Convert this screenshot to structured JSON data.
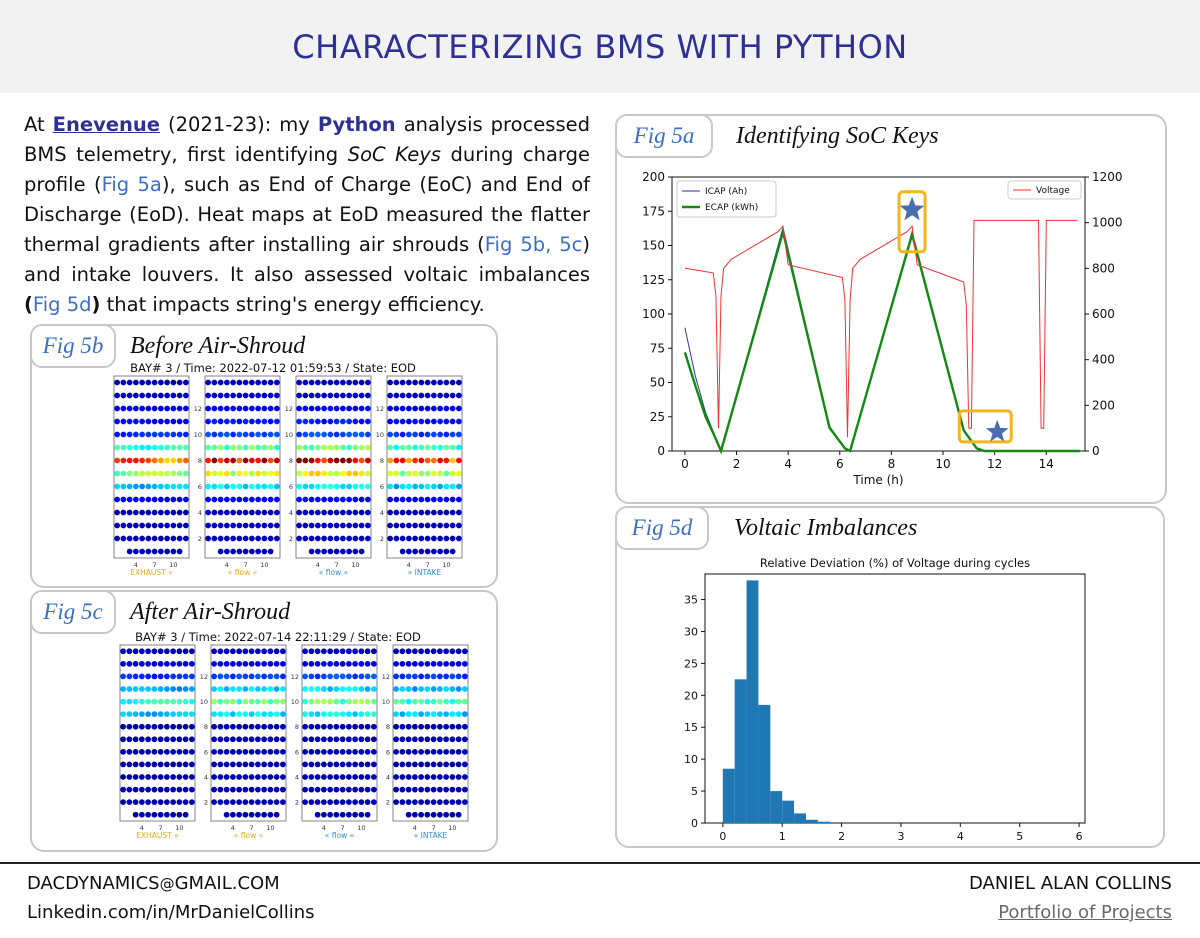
{
  "header": {
    "title": "CHARACTERIZING BMS WITH PYTHON"
  },
  "intro": {
    "p1": "At ",
    "company": "Enevenue",
    "p2": " (2021-23): my ",
    "python": "Python",
    "p3": " analysis processed BMS telemetry, first identifying ",
    "soc": "SoC Keys",
    "p4": " during charge profile (",
    "fig5a": "Fig 5a",
    "p5": "), such as End of Charge (EoC) and End of Discharge (EoD). Heat maps at EoD measured the flatter thermal gradients after installing air shrouds (",
    "fig5bc": "Fig 5b, 5c",
    "p6": ") and intake louvers. It also assessed voltaic imbalances ",
    "open": "(",
    "fig5d": "Fig 5d",
    "close": ")",
    "p7": " that impacts string's energy efficiency."
  },
  "fig5b": {
    "tab": "Fig 5b",
    "title": "Before Air-Shroud",
    "heatmap_title": "BAY# 3 / Time: 2022-07-12 01:59:53 / State: EOD",
    "col_ticks": [
      "4",
      "7",
      "10"
    ],
    "row_ticks": [
      "12",
      "10",
      "8",
      "6",
      "4",
      "2"
    ],
    "panel_labels": [
      "EXHAUST «",
      "« flow «",
      "« flow «",
      "« INTAKE"
    ]
  },
  "fig5c": {
    "tab": "Fig 5c",
    "title": "After Air-Shroud",
    "heatmap_title": "BAY# 3 / Time: 2022-07-14 22:11:29 / State: EOD",
    "col_ticks": [
      "4",
      "7",
      "10"
    ],
    "row_ticks": [
      "12",
      "10",
      "8",
      "6",
      "4",
      "2"
    ],
    "panel_labels": [
      "EXHAUST «",
      "« flow «",
      "« flow «",
      "« INTAKE"
    ]
  },
  "colors": {
    "brand": "#2e3192",
    "link": "#3b6fc4",
    "exhaust": "#e6a817",
    "intake": "#2b8fd6",
    "highlight": "#f2b51c"
  },
  "fig5a": {
    "tab": "Fig 5a",
    "title": "Identifying SoC Keys"
  },
  "fig5d": {
    "tab": "Fig 5d",
    "title": "Voltaic Imbalances"
  },
  "chart_data": [
    {
      "type": "line",
      "xlabel": "Time (h)",
      "xlim": [
        -0.5,
        15.5
      ],
      "ylim": [
        0,
        200
      ],
      "y2lim": [
        0,
        1200
      ],
      "x_ticks": [
        0,
        2,
        4,
        6,
        8,
        10,
        12,
        14
      ],
      "y_ticks": [
        0,
        25,
        50,
        75,
        100,
        125,
        150,
        175,
        200
      ],
      "y2_ticks": [
        0,
        200,
        400,
        600,
        800,
        1000,
        1200
      ],
      "legend_left": [
        "ICAP (Ah)",
        "ECAP (kWh)"
      ],
      "legend_right": [
        "Voltage"
      ],
      "series": [
        {
          "name": "ICAP (Ah)",
          "color": "#2233aa",
          "axis": "left",
          "points": [
            [
              0,
              90
            ],
            [
              0.4,
              55
            ],
            [
              0.8,
              28
            ],
            [
              1.1,
              14
            ],
            [
              1.4,
              0
            ],
            [
              3.8,
              163
            ],
            [
              5.6,
              18
            ],
            [
              6.2,
              2
            ],
            [
              6.4,
              0
            ],
            [
              8.8,
              160
            ],
            [
              10.8,
              16
            ],
            [
              11.3,
              2
            ],
            [
              11.6,
              0
            ],
            [
              15.3,
              0
            ]
          ]
        },
        {
          "name": "ECAP (kWh)",
          "color": "#128a12",
          "axis": "left",
          "points": [
            [
              0,
              72
            ],
            [
              0.4,
              48
            ],
            [
              0.8,
              25
            ],
            [
              1.1,
              13
            ],
            [
              1.4,
              0
            ],
            [
              3.8,
              160
            ],
            [
              5.6,
              17
            ],
            [
              6.2,
              2
            ],
            [
              6.4,
              0
            ],
            [
              8.8,
              158
            ],
            [
              10.8,
              15
            ],
            [
              11.3,
              2
            ],
            [
              11.6,
              0
            ],
            [
              15.3,
              0
            ]
          ]
        },
        {
          "name": "Voltage",
          "color": "#ee3333",
          "axis": "right",
          "points": [
            [
              0,
              800
            ],
            [
              1.1,
              780
            ],
            [
              1.2,
              680
            ],
            [
              1.3,
              100
            ],
            [
              1.4,
              680
            ],
            [
              1.5,
              800
            ],
            [
              1.8,
              840
            ],
            [
              3.6,
              960
            ],
            [
              3.8,
              985
            ],
            [
              4.0,
              815
            ],
            [
              6.1,
              760
            ],
            [
              6.2,
              660
            ],
            [
              6.3,
              60
            ],
            [
              6.4,
              660
            ],
            [
              6.5,
              800
            ],
            [
              6.8,
              840
            ],
            [
              8.6,
              960
            ],
            [
              8.8,
              985
            ],
            [
              9.0,
              815
            ],
            [
              10.8,
              740
            ],
            [
              10.9,
              640
            ],
            [
              11.0,
              100
            ],
            [
              11.1,
              100
            ],
            [
              11.2,
              1010
            ],
            [
              13.7,
              1010
            ],
            [
              13.8,
              100
            ],
            [
              13.9,
              100
            ],
            [
              14.0,
              1010
            ],
            [
              15.2,
              1010
            ]
          ]
        }
      ],
      "markers": [
        {
          "x": 8.8,
          "y": 160
        },
        {
          "x": 12.1,
          "y": 11
        }
      ]
    },
    {
      "type": "bar",
      "title": "Relative Deviation (%) of Voltage during cycles",
      "xlim": [
        -0.3,
        6.1
      ],
      "ylim": [
        0,
        39
      ],
      "x_ticks": [
        0,
        1,
        2,
        3,
        4,
        5,
        6
      ],
      "y_ticks": [
        0,
        5,
        10,
        15,
        20,
        25,
        30,
        35
      ],
      "bin_width": 0.2,
      "bins": [
        [
          0,
          8.5
        ],
        [
          0.2,
          22.5
        ],
        [
          0.4,
          38
        ],
        [
          0.6,
          18.5
        ],
        [
          0.8,
          5
        ],
        [
          1.0,
          3.5
        ],
        [
          1.2,
          1.5
        ],
        [
          1.4,
          0.5
        ],
        [
          1.6,
          0.2
        ]
      ]
    }
  ]
}
